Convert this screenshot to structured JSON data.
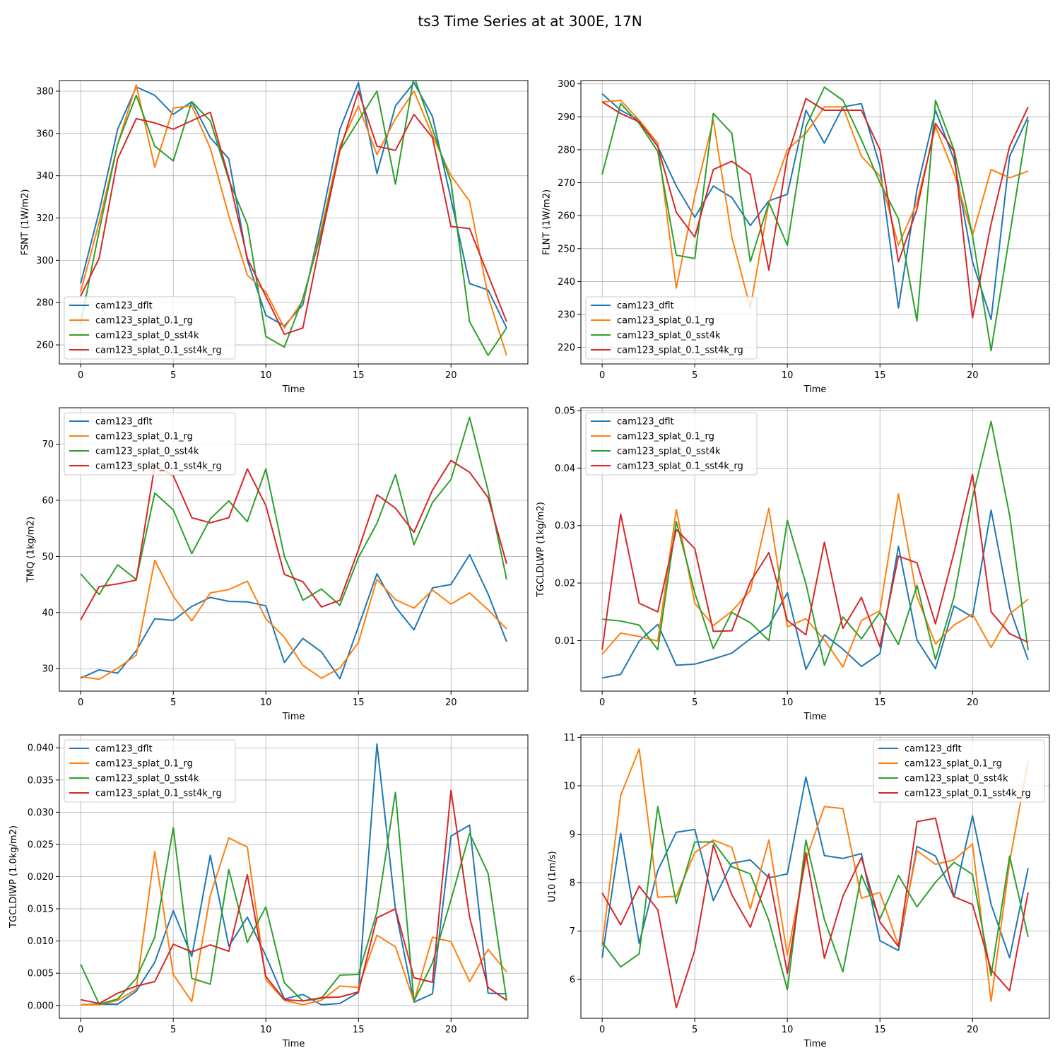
{
  "figure": {
    "title": "ts3 Time Series at at 300E, 17N"
  },
  "colors": {
    "cam123_dflt": "#1f77b4",
    "cam123_splat_0.1_rg": "#ff7f0e",
    "cam123_splat_0_sst4k": "#2ca02c",
    "cam123_splat_0.1_sst4k_rg": "#d62728"
  },
  "chart_data": [
    {
      "type": "line",
      "xlabel": "Time",
      "ylabel": "FSNT (1W/m2)",
      "xlim": [
        -1.15,
        24.15
      ],
      "ylim": [
        251,
        385
      ],
      "xticks": [
        0,
        5,
        10,
        15,
        20
      ],
      "yticks": [
        260,
        280,
        300,
        320,
        340,
        360,
        380
      ],
      "ytick_labels": [
        "260",
        "280",
        "300",
        "320",
        "340",
        "360",
        "380"
      ],
      "legend_loc": "lower-left",
      "x": [
        0,
        1,
        2,
        3,
        4,
        5,
        6,
        7,
        8,
        9,
        10,
        11,
        12,
        13,
        14,
        15,
        16,
        17,
        18,
        19,
        20,
        21,
        22,
        23
      ],
      "series": [
        {
          "name": "cam123_dflt",
          "values": [
            289,
            323,
            362,
            382,
            378,
            369,
            375,
            358,
            348,
            300,
            274,
            269,
            279,
            319,
            362,
            384,
            341,
            373,
            384,
            368,
            329,
            289,
            286,
            268
          ]
        },
        {
          "name": "cam123_splat_0.1_rg",
          "values": [
            285,
            318,
            355,
            383,
            344,
            372,
            373,
            353,
            321,
            293,
            285,
            268,
            281,
            315,
            354,
            373,
            350,
            367,
            380,
            359,
            340,
            328,
            283,
            255
          ]
        },
        {
          "name": "cam123_splat_0_sst4k",
          "values": [
            270,
            314,
            355,
            378,
            354,
            347,
            375,
            366,
            338,
            317,
            264,
            259,
            282,
            313,
            352,
            366,
            380,
            336,
            387,
            362,
            337,
            271,
            255,
            268
          ]
        },
        {
          "name": "cam123_splat_0.1_sst4k_rg",
          "values": [
            283,
            301,
            348,
            367,
            365,
            362,
            366,
            370,
            339,
            301,
            283,
            265,
            268,
            311,
            352,
            380,
            354,
            352,
            369,
            358,
            316,
            315,
            293,
            271
          ]
        }
      ]
    },
    {
      "type": "line",
      "xlabel": "Time",
      "ylabel": "FLNT (1W/m2)",
      "xlim": [
        -1.15,
        24.15
      ],
      "ylim": [
        215,
        301
      ],
      "xticks": [
        0,
        5,
        10,
        15,
        20
      ],
      "yticks": [
        220,
        230,
        240,
        250,
        260,
        270,
        280,
        290,
        300
      ],
      "ytick_labels": [
        "220",
        "230",
        "240",
        "250",
        "260",
        "270",
        "280",
        "290",
        "300"
      ],
      "legend_loc": "lower-left",
      "x": [
        0,
        1,
        2,
        3,
        4,
        5,
        6,
        7,
        8,
        9,
        10,
        11,
        12,
        13,
        14,
        15,
        16,
        17,
        18,
        19,
        20,
        21,
        22,
        23
      ],
      "series": [
        {
          "name": "cam123_dflt",
          "values": [
            297,
            292,
            289,
            281,
            269,
            259.5,
            269,
            265.5,
            257,
            264.5,
            266.5,
            292,
            282,
            293,
            294,
            275,
            232,
            268,
            292,
            277,
            246,
            228.5,
            278,
            290
          ]
        },
        {
          "name": "cam123_splat_0.1_rg",
          "values": [
            294.5,
            295,
            289,
            282,
            238,
            266,
            289,
            253.5,
            232,
            264,
            280,
            285,
            293,
            293,
            278,
            272,
            251,
            264,
            287,
            273,
            254,
            274,
            271.5,
            273.5
          ]
        },
        {
          "name": "cam123_splat_0_sst4k",
          "values": [
            272.5,
            294,
            288,
            279.5,
            248,
            247,
            291,
            285,
            246,
            264,
            251,
            287,
            299,
            295,
            283,
            270,
            259,
            228,
            295,
            280,
            254,
            219,
            254,
            289
          ]
        },
        {
          "name": "cam123_splat_0.1_sst4k_rg",
          "values": [
            294.5,
            291,
            288.5,
            281,
            261,
            253.5,
            274,
            276.5,
            272.5,
            243.5,
            278,
            295.5,
            292,
            292,
            292,
            280,
            246,
            262,
            288,
            279.5,
            229,
            257.5,
            281,
            293
          ]
        }
      ]
    },
    {
      "type": "line",
      "xlabel": "Time",
      "ylabel": "TMQ (1kg/m2)",
      "xlim": [
        -1.15,
        24.15
      ],
      "ylim": [
        26,
        76.5
      ],
      "xticks": [
        0,
        5,
        10,
        15,
        20
      ],
      "yticks": [
        30,
        40,
        50,
        60,
        70
      ],
      "ytick_labels": [
        "30",
        "40",
        "50",
        "60",
        "70"
      ],
      "legend_loc": "upper-left",
      "x": [
        0,
        1,
        2,
        3,
        4,
        5,
        6,
        7,
        8,
        9,
        10,
        11,
        12,
        13,
        14,
        15,
        16,
        17,
        18,
        19,
        20,
        21,
        22,
        23
      ],
      "series": [
        {
          "name": "cam123_dflt",
          "values": [
            28.3,
            29.8,
            29.2,
            33.2,
            38.9,
            38.6,
            41.1,
            42.7,
            42,
            41.9,
            41.2,
            31.1,
            35.4,
            33,
            28.2,
            37.5,
            46.9,
            41,
            36.9,
            44.4,
            45,
            50.3,
            43.3,
            34.8
          ]
        },
        {
          "name": "cam123_splat_0.1_rg",
          "values": [
            28.6,
            28.1,
            30.1,
            32.4,
            49.3,
            42.9,
            38.5,
            43.5,
            44.1,
            45.6,
            38.9,
            35.6,
            30.6,
            28.3,
            30.1,
            34.7,
            45.9,
            42.3,
            40.8,
            44,
            41.5,
            43.5,
            40.5,
            37.1
          ]
        },
        {
          "name": "cam123_splat_0_sst4k",
          "values": [
            46.9,
            43.2,
            48.5,
            45.9,
            61.3,
            58.3,
            50.5,
            56.7,
            59.9,
            56.2,
            65.6,
            50,
            42.2,
            44.2,
            41.3,
            49.8,
            55.9,
            64.6,
            52.1,
            59.6,
            63.7,
            74.8,
            61.7,
            45.9
          ]
        },
        {
          "name": "cam123_splat_0.1_sst4k_rg",
          "values": [
            38.7,
            44.6,
            45.1,
            45.8,
            66.2,
            64.4,
            56.9,
            56,
            56.9,
            65.6,
            59.1,
            46.8,
            45.5,
            41,
            42.2,
            51.2,
            61,
            58.6,
            54.3,
            61.8,
            67.1,
            65,
            60.5,
            48.7
          ]
        }
      ]
    },
    {
      "type": "line",
      "xlabel": "Time",
      "ylabel": "TGCLDLWP (1kg/m2)",
      "xlim": [
        -1.15,
        24.15
      ],
      "ylim": [
        0.0012,
        0.0505
      ],
      "xticks": [
        0,
        5,
        10,
        15,
        20
      ],
      "yticks": [
        0.01,
        0.02,
        0.03,
        0.04,
        0.05
      ],
      "ytick_labels": [
        "0.01",
        "0.02",
        "0.03",
        "0.04",
        "0.05"
      ],
      "legend_loc": "upper-left",
      "x": [
        0,
        1,
        2,
        3,
        4,
        5,
        6,
        7,
        8,
        9,
        10,
        11,
        12,
        13,
        14,
        15,
        16,
        17,
        18,
        19,
        20,
        21,
        22,
        23
      ],
      "series": [
        {
          "name": "cam123_dflt",
          "values": [
            0.0035,
            0.0041,
            0.0099,
            0.0128,
            0.0057,
            0.0059,
            0.0068,
            0.0078,
            0.0103,
            0.0126,
            0.0183,
            0.005,
            0.011,
            0.0085,
            0.0055,
            0.0077,
            0.0264,
            0.0101,
            0.0051,
            0.016,
            0.0141,
            0.0327,
            0.0157,
            0.0066
          ]
        },
        {
          "name": "cam123_splat_0.1_rg",
          "values": [
            0.0076,
            0.0113,
            0.0107,
            0.0099,
            0.0328,
            0.0165,
            0.0126,
            0.0151,
            0.0187,
            0.033,
            0.0124,
            0.0138,
            0.0101,
            0.0054,
            0.0135,
            0.0152,
            0.0355,
            0.0176,
            0.0094,
            0.0127,
            0.0146,
            0.0088,
            0.0146,
            0.0172
          ]
        },
        {
          "name": "cam123_splat_0_sst4k",
          "values": [
            0.0137,
            0.0134,
            0.0127,
            0.0084,
            0.0307,
            0.0183,
            0.0086,
            0.0149,
            0.0131,
            0.01,
            0.0309,
            0.0199,
            0.0057,
            0.0141,
            0.0103,
            0.0149,
            0.0093,
            0.0196,
            0.0067,
            0.0175,
            0.0349,
            0.0481,
            0.0318,
            0.0083
          ]
        },
        {
          "name": "cam123_splat_0.1_sst4k_rg",
          "values": [
            0.0084,
            0.032,
            0.0165,
            0.015,
            0.0293,
            0.026,
            0.0116,
            0.0117,
            0.0202,
            0.0253,
            0.0135,
            0.011,
            0.0271,
            0.0121,
            0.0175,
            0.0089,
            0.0247,
            0.0235,
            0.0129,
            0.0253,
            0.0389,
            0.015,
            0.0112,
            0.0097
          ]
        }
      ]
    },
    {
      "type": "line",
      "xlabel": "Time",
      "ylabel": "TGCLDIWP (1.0kg/m2)",
      "xlim": [
        -1.15,
        24.15
      ],
      "ylim": [
        -0.002,
        0.042
      ],
      "xticks": [
        0,
        5,
        10,
        15,
        20
      ],
      "yticks": [
        0,
        0.005,
        0.01,
        0.015,
        0.02,
        0.025,
        0.03,
        0.035,
        0.04
      ],
      "ytick_labels": [
        "0.000",
        "0.005",
        "0.010",
        "0.015",
        "0.020",
        "0.025",
        "0.030",
        "0.035",
        "0.040"
      ],
      "legend_loc": "upper-left",
      "x": [
        0,
        1,
        2,
        3,
        4,
        5,
        6,
        7,
        8,
        9,
        10,
        11,
        12,
        13,
        14,
        15,
        16,
        17,
        18,
        19,
        20,
        21,
        22,
        23
      ],
      "series": [
        {
          "name": "cam123_dflt",
          "values": [
            0.0001,
            0.0002,
            0.0002,
            0.0022,
            0.0067,
            0.0147,
            0.0076,
            0.0233,
            0.0092,
            0.0137,
            0.0077,
            0.001,
            0.0017,
            0.0001,
            0.0003,
            0.002,
            0.0406,
            0.0149,
            0.0005,
            0.0018,
            0.0263,
            0.028,
            0.0019,
            0.0018
          ]
        },
        {
          "name": "cam123_splat_0.1_rg",
          "values": [
            0.0001,
            0.0001,
            0.0008,
            0.0025,
            0.0239,
            0.0048,
            0.0006,
            0.0171,
            0.026,
            0.0246,
            0.004,
            0.0008,
            0.0001,
            0.0008,
            0.003,
            0.0028,
            0.0109,
            0.0091,
            0.0006,
            0.0106,
            0.0099,
            0.0037,
            0.0087,
            0.0052
          ]
        },
        {
          "name": "cam123_splat_0_sst4k",
          "values": [
            0.0064,
            0.0002,
            0.001,
            0.0042,
            0.0106,
            0.0276,
            0.0042,
            0.0033,
            0.0211,
            0.0098,
            0.0153,
            0.0035,
            0.0007,
            0.0011,
            0.0047,
            0.0048,
            0.0145,
            0.0331,
            0.0007,
            0.0066,
            0.0164,
            0.0267,
            0.0205,
            0.0008
          ]
        },
        {
          "name": "cam123_splat_0.1_sst4k_rg",
          "values": [
            0.0009,
            0.0003,
            0.0019,
            0.003,
            0.0037,
            0.0095,
            0.0083,
            0.0094,
            0.0084,
            0.0203,
            0.0045,
            0.0009,
            0.0007,
            0.0012,
            0.0013,
            0.0021,
            0.0136,
            0.015,
            0.0043,
            0.0036,
            0.0334,
            0.0137,
            0.0028,
            0.0008
          ]
        }
      ]
    },
    {
      "type": "line",
      "xlabel": "Time",
      "ylabel": "U10 (1m/s)",
      "xlim": [
        -1.15,
        24.15
      ],
      "ylim": [
        5.2,
        11.05
      ],
      "xticks": [
        0,
        5,
        10,
        15,
        20
      ],
      "yticks": [
        6,
        7,
        8,
        9,
        10,
        11
      ],
      "ytick_labels": [
        "6",
        "7",
        "8",
        "9",
        "10",
        "11"
      ],
      "legend_loc": "upper-right",
      "x": [
        0,
        1,
        2,
        3,
        4,
        5,
        6,
        7,
        8,
        9,
        10,
        11,
        12,
        13,
        14,
        15,
        16,
        17,
        18,
        19,
        20,
        21,
        22,
        23
      ],
      "series": [
        {
          "name": "cam123_dflt",
          "values": [
            6.45,
            9.02,
            6.75,
            8.25,
            9.04,
            9.1,
            7.63,
            8.4,
            8.47,
            8.1,
            8.18,
            10.18,
            8.56,
            8.5,
            8.6,
            6.8,
            6.6,
            8.75,
            8.55,
            7.7,
            9.38,
            7.55,
            6.45,
            8.3
          ]
        },
        {
          "name": "cam123_splat_0.1_rg",
          "values": [
            6.7,
            9.8,
            10.76,
            7.7,
            7.72,
            8.62,
            8.88,
            8.73,
            7.46,
            8.88,
            6.5,
            8.48,
            9.57,
            9.53,
            7.68,
            7.8,
            6.7,
            8.66,
            8.38,
            8.47,
            8.8,
            5.55,
            8.43,
            10.51
          ]
        },
        {
          "name": "cam123_splat_0_sst4k",
          "values": [
            6.77,
            6.26,
            6.53,
            9.57,
            7.57,
            8.84,
            8.84,
            8.33,
            8.18,
            7.22,
            5.79,
            8.88,
            7.24,
            6.16,
            8.16,
            7.25,
            8.15,
            7.5,
            8.01,
            8.42,
            8.17,
            6.08,
            8.55,
            6.88
          ]
        },
        {
          "name": "cam123_splat_0.1_sst4k_rg",
          "values": [
            7.79,
            7.13,
            7.93,
            7.44,
            5.42,
            6.61,
            8.78,
            7.75,
            7.08,
            8.18,
            6.13,
            8.62,
            6.44,
            7.72,
            8.52,
            7.19,
            6.68,
            9.26,
            9.33,
            7.71,
            7.55,
            6.2,
            5.77,
            7.8
          ]
        }
      ]
    }
  ]
}
